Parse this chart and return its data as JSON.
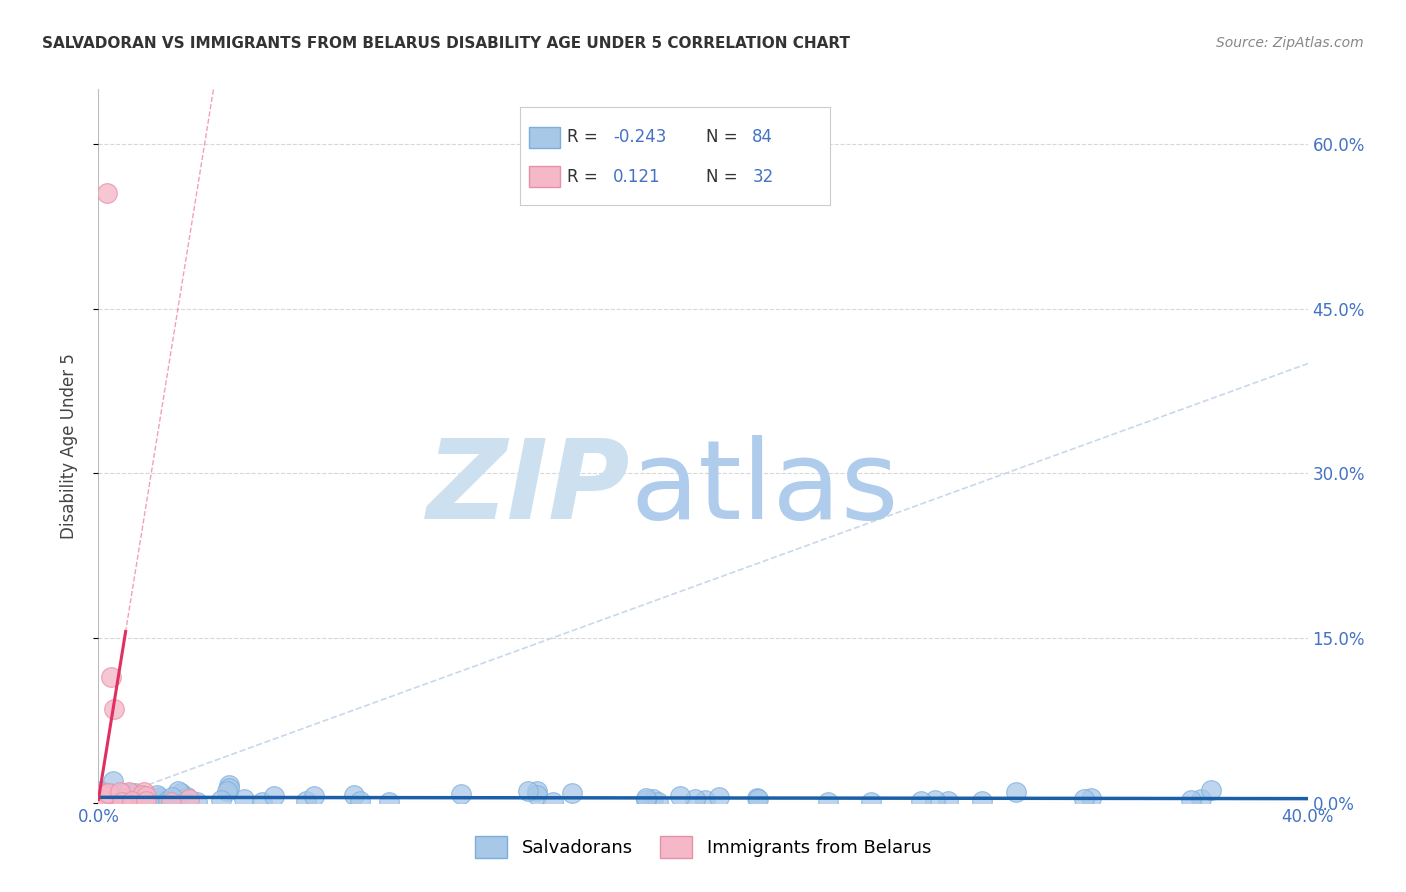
{
  "title": "SALVADORAN VS IMMIGRANTS FROM BELARUS DISABILITY AGE UNDER 5 CORRELATION CHART",
  "source": "Source: ZipAtlas.com",
  "ylabel": "Disability Age Under 5",
  "xlim": [
    0.0,
    0.4
  ],
  "ylim": [
    0.0,
    0.65
  ],
  "yticks": [
    0.0,
    0.15,
    0.3,
    0.45,
    0.6
  ],
  "right_ytick_labels": [
    "0.0%",
    "15.0%",
    "30.0%",
    "45.0%",
    "60.0%"
  ],
  "xtick_labels": [
    "0.0%",
    "40.0%"
  ],
  "salvadoran_color": "#a8c8e8",
  "salvadoran_edge": "#7aaedc",
  "belarus_color": "#f4b8c8",
  "belarus_edge": "#e890a8",
  "salvadoran_R": -0.243,
  "salvadoran_N": 84,
  "belarus_R": 0.121,
  "belarus_N": 32,
  "diagonal_color": "#c8d8ec",
  "salvadoran_line_color": "#1a5fa8",
  "belarus_line_color": "#e03060",
  "grid_color": "#d8d8d8",
  "background_color": "#ffffff",
  "title_color": "#333333",
  "source_color": "#888888",
  "tick_color": "#4472c4",
  "legend_label_color": "#333333",
  "legend_value_color": "#4472c4",
  "watermark_zip_color": "#cce0f0",
  "watermark_atlas_color": "#b0ccec"
}
